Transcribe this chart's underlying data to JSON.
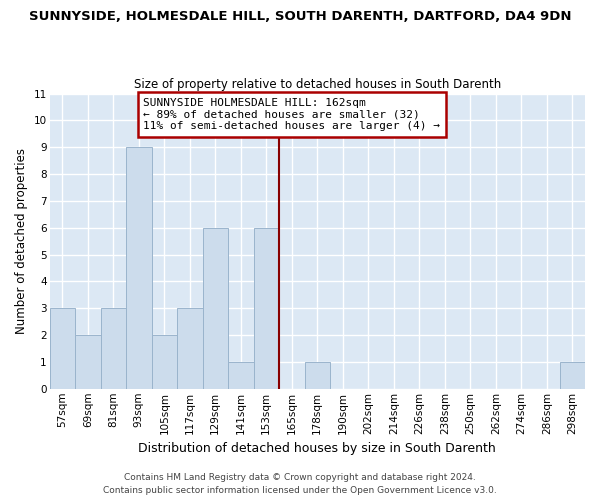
{
  "title": "SUNNYSIDE, HOLMESDALE HILL, SOUTH DARENTH, DARTFORD, DA4 9DN",
  "subtitle": "Size of property relative to detached houses in South Darenth",
  "xlabel": "Distribution of detached houses by size in South Darenth",
  "ylabel": "Number of detached properties",
  "bin_labels": [
    "57sqm",
    "69sqm",
    "81sqm",
    "93sqm",
    "105sqm",
    "117sqm",
    "129sqm",
    "141sqm",
    "153sqm",
    "165sqm",
    "178sqm",
    "190sqm",
    "202sqm",
    "214sqm",
    "226sqm",
    "238sqm",
    "250sqm",
    "262sqm",
    "274sqm",
    "286sqm",
    "298sqm"
  ],
  "bar_heights": [
    3,
    2,
    3,
    9,
    2,
    3,
    6,
    1,
    6,
    0,
    1,
    0,
    0,
    0,
    0,
    0,
    0,
    0,
    0,
    0,
    1
  ],
  "bar_color": "#ccdcec",
  "bar_edge_color": "#9ab4cc",
  "vline_color": "#880000",
  "ylim": [
    0,
    11
  ],
  "yticks": [
    0,
    1,
    2,
    3,
    4,
    5,
    6,
    7,
    8,
    9,
    10,
    11
  ],
  "annotation_line1": "SUNNYSIDE HOLMESDALE HILL: 162sqm",
  "annotation_line2": "← 89% of detached houses are smaller (32)",
  "annotation_line3": "11% of semi-detached houses are larger (4) →",
  "footer_line1": "Contains HM Land Registry data © Crown copyright and database right 2024.",
  "footer_line2": "Contains public sector information licensed under the Open Government Licence v3.0.",
  "bg_color": "#ffffff",
  "plot_bg_color": "#dce8f4",
  "grid_color": "#ffffff",
  "title_fontsize": 9.5,
  "subtitle_fontsize": 8.5,
  "ylabel_fontsize": 8.5,
  "xlabel_fontsize": 9.0,
  "tick_fontsize": 7.5,
  "footer_fontsize": 6.5,
  "ann_fontsize": 8.0
}
